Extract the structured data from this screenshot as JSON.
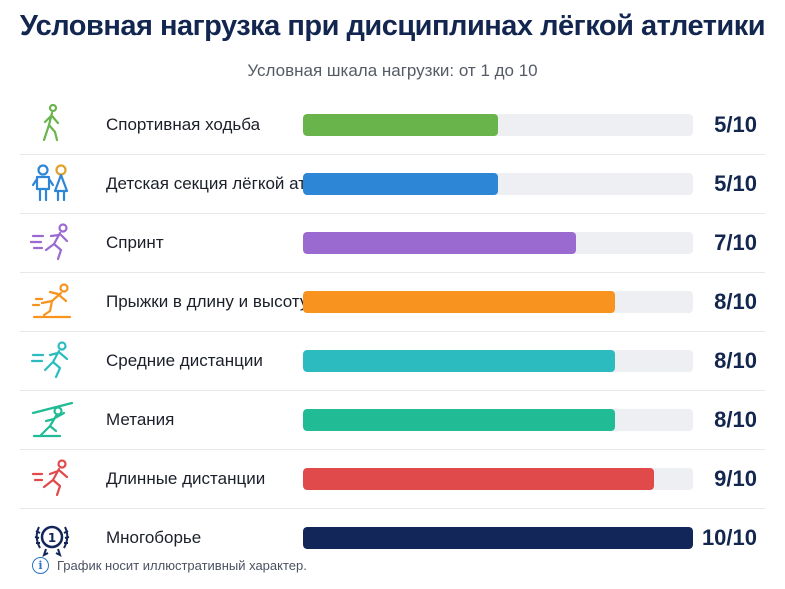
{
  "chart_data": {
    "type": "bar",
    "orientation": "horizontal",
    "title": "Условная нагрузка при дисциплинах лёгкой атлетики",
    "subtitle": "Условная шкала нагрузки: от 1 до 10",
    "xlim": [
      0,
      10
    ],
    "grid": false,
    "categories": [
      "Спортивная ходьба",
      "Детская секция лёгкой атлетики",
      "Спринт",
      "Прыжки в длину и высоту",
      "Средние дистанции",
      "Метания",
      "Длинные дистанции",
      "Многоборье"
    ],
    "values": [
      5,
      5,
      7,
      8,
      8,
      8,
      9,
      10
    ],
    "value_labels": [
      "5/10",
      "5/10",
      "7/10",
      "8/10",
      "8/10",
      "8/10",
      "9/10",
      "10/10"
    ],
    "colors": [
      "#6ab44c",
      "#2e86d6",
      "#9b6ad0",
      "#f7931e",
      "#2cbcc0",
      "#21bb95",
      "#e04a4b",
      "#13265a"
    ],
    "icons": [
      "walking-icon",
      "children-icon",
      "sprint-icon",
      "long-jump-icon",
      "runner-icon",
      "javelin-icon",
      "distance-runner-icon",
      "medal-icon"
    ],
    "footnote": "График носит иллюстративный характер."
  }
}
